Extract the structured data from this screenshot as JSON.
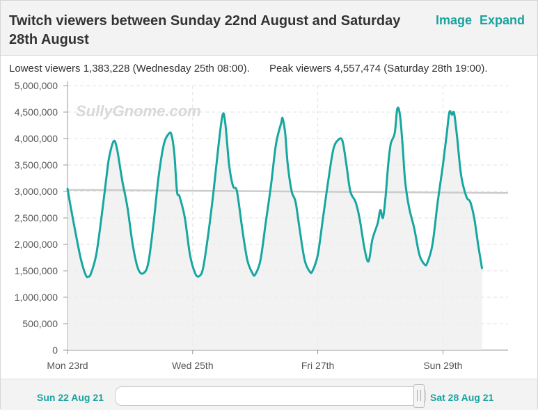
{
  "header": {
    "title": "Twitch viewers between Sunday 22nd August and Saturday 28th August",
    "image_link": "Image",
    "expand_link": "Expand"
  },
  "stats": {
    "lowest": "Lowest viewers 1,383,228 (Wednesday 25th 08:00).",
    "peak": "Peak viewers 4,557,474 (Saturday 28th 19:00)."
  },
  "watermark": "SullyGnome.com",
  "footer": {
    "range_start": "Sun 22 Aug 21",
    "range_end": "Sat 28 Aug 21"
  },
  "colors": {
    "series": "#17a6a0",
    "trend": "#cccccc",
    "accent": "#1aa39e"
  },
  "chart_data": {
    "type": "area",
    "y_ticks": [
      "5,000,000",
      "4,500,000",
      "4,000,000",
      "3,500,000",
      "3,000,000",
      "2,500,000",
      "2,000,000",
      "1,500,000",
      "1,000,000",
      "500,000",
      "0"
    ],
    "ylim": [
      0,
      5000000
    ],
    "x_ticks": [
      {
        "label": "Mon 23rd",
        "hour": 0
      },
      {
        "label": "Wed 25th",
        "hour": 48
      },
      {
        "label": "Fri 27th",
        "hour": 96
      },
      {
        "label": "Sun 29th",
        "hour": 144
      }
    ],
    "xlim": [
      0,
      169
    ],
    "grid": true,
    "trend_line": {
      "start": 3030000,
      "end": 2970000
    },
    "series": [
      {
        "points": [
          [
            0,
            3050000
          ],
          [
            2,
            2500000
          ],
          [
            5,
            1750000
          ],
          [
            7,
            1420000
          ],
          [
            8,
            1390000
          ],
          [
            9,
            1450000
          ],
          [
            11,
            1800000
          ],
          [
            13,
            2500000
          ],
          [
            15,
            3300000
          ],
          [
            16,
            3650000
          ],
          [
            17.7,
            3950000
          ],
          [
            19,
            3800000
          ],
          [
            21,
            3200000
          ],
          [
            23,
            2700000
          ],
          [
            25,
            2000000
          ],
          [
            27,
            1550000
          ],
          [
            29,
            1450000
          ],
          [
            31,
            1650000
          ],
          [
            33,
            2400000
          ],
          [
            35,
            3300000
          ],
          [
            37,
            3900000
          ],
          [
            39,
            4100000
          ],
          [
            40,
            4050000
          ],
          [
            41,
            3700000
          ],
          [
            42,
            3000000
          ],
          [
            43,
            2900000
          ],
          [
            45,
            2500000
          ],
          [
            47,
            1800000
          ],
          [
            49,
            1450000
          ],
          [
            50.5,
            1400000
          ],
          [
            52,
            1550000
          ],
          [
            54,
            2200000
          ],
          [
            56,
            3000000
          ],
          [
            58,
            3900000
          ],
          [
            59.5,
            4450000
          ],
          [
            60.5,
            4300000
          ],
          [
            62,
            3500000
          ],
          [
            63.5,
            3100000
          ],
          [
            65,
            3000000
          ],
          [
            67,
            2300000
          ],
          [
            69,
            1700000
          ],
          [
            71,
            1450000
          ],
          [
            72,
            1430000
          ],
          [
            74,
            1700000
          ],
          [
            76,
            2400000
          ],
          [
            78,
            3100000
          ],
          [
            80,
            3900000
          ],
          [
            82,
            4300000
          ],
          [
            82.5,
            4380000
          ],
          [
            83.5,
            4100000
          ],
          [
            84.5,
            3500000
          ],
          [
            86,
            3000000
          ],
          [
            87.5,
            2800000
          ],
          [
            89,
            2300000
          ],
          [
            91,
            1700000
          ],
          [
            93,
            1480000
          ],
          [
            94,
            1500000
          ],
          [
            96,
            1800000
          ],
          [
            98,
            2500000
          ],
          [
            100,
            3200000
          ],
          [
            102,
            3800000
          ],
          [
            104,
            3980000
          ],
          [
            105.5,
            3950000
          ],
          [
            107,
            3500000
          ],
          [
            108.5,
            3000000
          ],
          [
            110.5,
            2800000
          ],
          [
            112,
            2500000
          ],
          [
            114,
            1900000
          ],
          [
            115.5,
            1680000
          ],
          [
            117,
            2100000
          ],
          [
            119,
            2400000
          ],
          [
            120,
            2650000
          ],
          [
            121,
            2500000
          ],
          [
            122,
            2900000
          ],
          [
            123,
            3500000
          ],
          [
            124,
            3900000
          ],
          [
            125.5,
            4100000
          ],
          [
            126.5,
            4560000
          ],
          [
            127.5,
            4450000
          ],
          [
            128.5,
            3900000
          ],
          [
            129.5,
            3200000
          ],
          [
            131,
            2700000
          ],
          [
            133,
            2300000
          ],
          [
            135,
            1800000
          ],
          [
            137,
            1620000
          ],
          [
            138,
            1650000
          ],
          [
            140,
            2000000
          ],
          [
            142,
            2800000
          ],
          [
            144,
            3500000
          ],
          [
            145.5,
            4100000
          ],
          [
            146.5,
            4500000
          ],
          [
            147.5,
            4450000
          ],
          [
            148.3,
            4480000
          ],
          [
            149.5,
            4000000
          ],
          [
            151,
            3300000
          ],
          [
            153,
            2900000
          ],
          [
            154.5,
            2800000
          ],
          [
            156,
            2500000
          ],
          [
            157.5,
            2000000
          ],
          [
            159,
            1550000
          ]
        ]
      }
    ]
  }
}
